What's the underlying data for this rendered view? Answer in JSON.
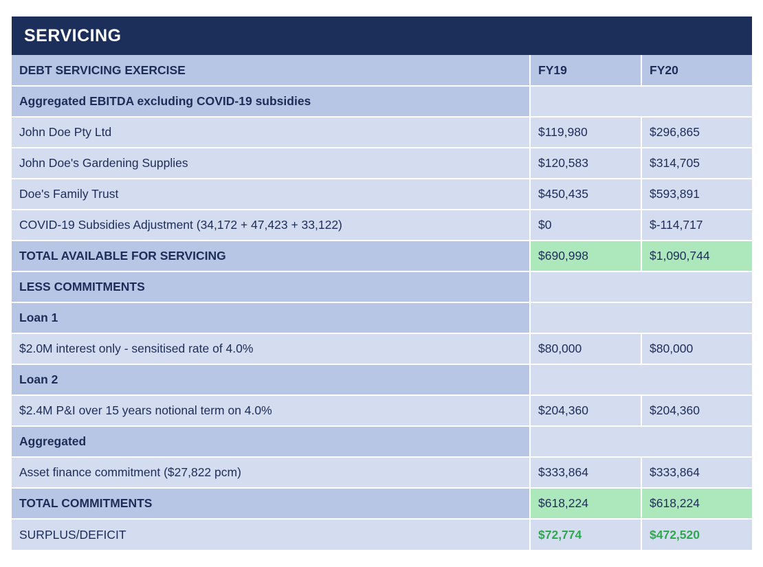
{
  "title": "SERVICING",
  "header": {
    "label": "DEBT SERVICING EXERCISE",
    "col1": "FY19",
    "col2": "FY20"
  },
  "rows": [
    {
      "label": "Aggregated EBITDA excluding COVID-19 subsidies"
    },
    {
      "label": "John Doe Pty Ltd",
      "fy19": "$119,980",
      "fy20": "$296,865"
    },
    {
      "label": "John Doe's Gardening Supplies",
      "fy19": "$120,583",
      "fy20": "$314,705"
    },
    {
      "label": "Doe's Family Trust",
      "fy19": "$450,435",
      "fy20": "$593,891"
    },
    {
      "label": "COVID-19 Subsidies Adjustment (34,172 + 47,423 + 33,122)",
      "fy19": "$0",
      "fy20": "$-114,717"
    },
    {
      "label": "TOTAL AVAILABLE FOR SERVICING",
      "fy19": "$690,998",
      "fy20": "$1,090,744"
    },
    {
      "label": "LESS COMMITMENTS"
    },
    {
      "label": "Loan 1"
    },
    {
      "label": "$2.0M interest only - sensitised rate of 4.0%",
      "fy19": "$80,000",
      "fy20": "$80,000"
    },
    {
      "label": "Loan 2"
    },
    {
      "label": "$2.4M P&I over 15 years notional term on 4.0%",
      "fy19": "$204,360",
      "fy20": "$204,360"
    },
    {
      "label": "Aggregated"
    },
    {
      "label": "Asset finance commitment ($27,822 pcm)",
      "fy19": "$333,864",
      "fy20": "$333,864"
    },
    {
      "label": "TOTAL COMMITMENTS",
      "fy19": "$618,224",
      "fy20": "$618,224"
    },
    {
      "label": "SURPLUS/DEFICIT",
      "fy19": "$72,774",
      "fy20": "$472,520"
    }
  ],
  "colors": {
    "title_bg": "#1b2f5a",
    "header_bg": "#b8c6e6",
    "row_bg": "#d4dcf0",
    "total_bg": "#ade8bc",
    "surplus_text": "#2ea84e",
    "text": "#1e2d57"
  }
}
